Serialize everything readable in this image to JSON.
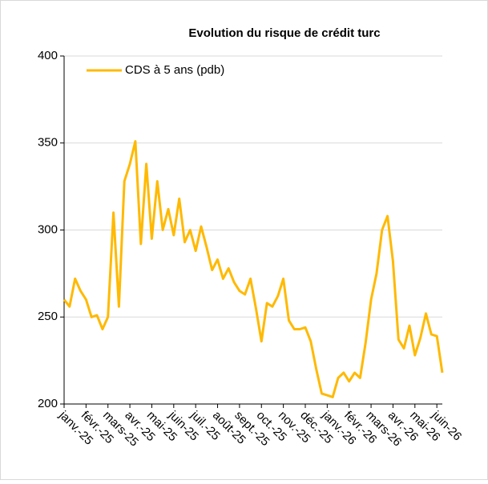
{
  "chart_data": {
    "type": "line",
    "title": "Evolution du risque de crédit turc",
    "categories": [
      "janv.-25",
      null,
      null,
      null,
      "févr.-25",
      null,
      null,
      null,
      "mars-25",
      null,
      null,
      null,
      "avr.-25",
      null,
      null,
      null,
      "mai-25",
      null,
      null,
      null,
      "juin-25",
      null,
      null,
      null,
      "juil.-25",
      null,
      null,
      null,
      "août-25",
      null,
      null,
      null,
      "sept.-25",
      null,
      null,
      null,
      "oct.-25",
      null,
      null,
      null,
      "nov.-25",
      null,
      null,
      null,
      "déc.-25",
      null,
      null,
      null,
      "janv.-26",
      null,
      null,
      null,
      "févr.-26",
      null,
      null,
      null,
      "mars-26",
      null,
      null,
      null,
      "avr.-26",
      null,
      null,
      null,
      "mai-26",
      null,
      null,
      null,
      "juin-26",
      null
    ],
    "series": [
      {
        "name": "CDS à 5 ans (pdb)",
        "color": "#FFB900",
        "values": [
          260,
          256,
          272,
          265,
          260,
          250,
          251,
          243,
          250,
          310,
          256,
          328,
          338,
          351,
          292,
          338,
          295,
          328,
          300,
          312,
          297,
          318,
          293,
          300,
          288,
          302,
          290,
          277,
          283,
          272,
          278,
          270,
          265,
          263,
          272,
          255,
          236,
          258,
          256,
          262,
          272,
          248,
          243,
          243,
          244,
          236,
          220,
          206,
          205,
          204,
          215,
          218,
          213,
          218,
          215,
          235,
          260,
          275,
          300,
          308,
          282,
          237,
          232,
          245,
          228,
          238,
          252,
          240,
          239,
          218
        ]
      }
    ],
    "ylim": [
      200,
      400
    ],
    "yticks": [
      200,
      250,
      300,
      350,
      400
    ],
    "grid": true,
    "legend": "top-left"
  }
}
